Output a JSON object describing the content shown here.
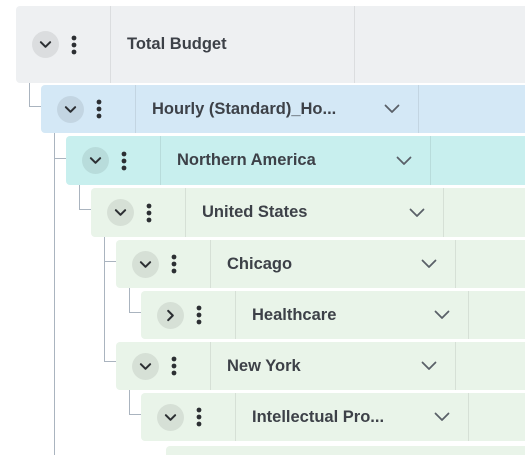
{
  "rows": [
    {
      "label": "Total Budget",
      "expanded": true,
      "has_dropdown": false
    },
    {
      "label": "Hourly (Standard)_Ho...",
      "expanded": true,
      "has_dropdown": true
    },
    {
      "label": "Northern America",
      "expanded": true,
      "has_dropdown": true
    },
    {
      "label": "United States",
      "expanded": true,
      "has_dropdown": true
    },
    {
      "label": "Chicago",
      "expanded": true,
      "has_dropdown": true
    },
    {
      "label": "Healthcare",
      "expanded": false,
      "has_dropdown": true
    },
    {
      "label": "New York",
      "expanded": true,
      "has_dropdown": true
    },
    {
      "label": "Intellectual Pro...",
      "expanded": true,
      "has_dropdown": true
    }
  ],
  "icons": {
    "expand": "chevron-down-icon",
    "collapse": "chevron-right-icon",
    "menu": "kebab-menu-icon",
    "dropdown": "chevron-down-icon"
  },
  "colors": {
    "level0": "#eef0f2",
    "level1": "#d4e8f6",
    "level2": "#c8efee",
    "level3": "#e9f4e9",
    "text": "#3d4148",
    "connector": "#aab4bf"
  }
}
